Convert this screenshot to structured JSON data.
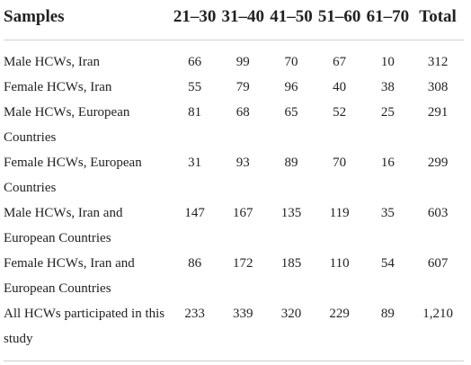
{
  "table": {
    "headers": [
      "Samples",
      "21–30",
      "31–40",
      "41–50",
      "51–60",
      "61–70",
      "Total"
    ],
    "rows": [
      {
        "sample": "Male HCWs, Iran",
        "values": [
          "66",
          "99",
          "70",
          "67",
          "10",
          "312"
        ]
      },
      {
        "sample": "Female HCWs, Iran",
        "values": [
          "55",
          "79",
          "96",
          "40",
          "38",
          "308"
        ]
      },
      {
        "sample": "Male HCWs, European Countries",
        "values": [
          "81",
          "68",
          "65",
          "52",
          "25",
          "291"
        ]
      },
      {
        "sample": "Female HCWs, European Countries",
        "values": [
          "31",
          "93",
          "89",
          "70",
          "16",
          "299"
        ]
      },
      {
        "sample": "Male HCWs, Iran and European Countries",
        "values": [
          "147",
          "167",
          "135",
          "119",
          "35",
          "603"
        ]
      },
      {
        "sample": "Female HCWs, Iran and European Countries",
        "values": [
          "86",
          "172",
          "185",
          "110",
          "54",
          "607"
        ]
      },
      {
        "sample": "All HCWs participated in this study",
        "values": [
          "233",
          "339",
          "320",
          "229",
          "89",
          "1,210"
        ]
      }
    ]
  }
}
